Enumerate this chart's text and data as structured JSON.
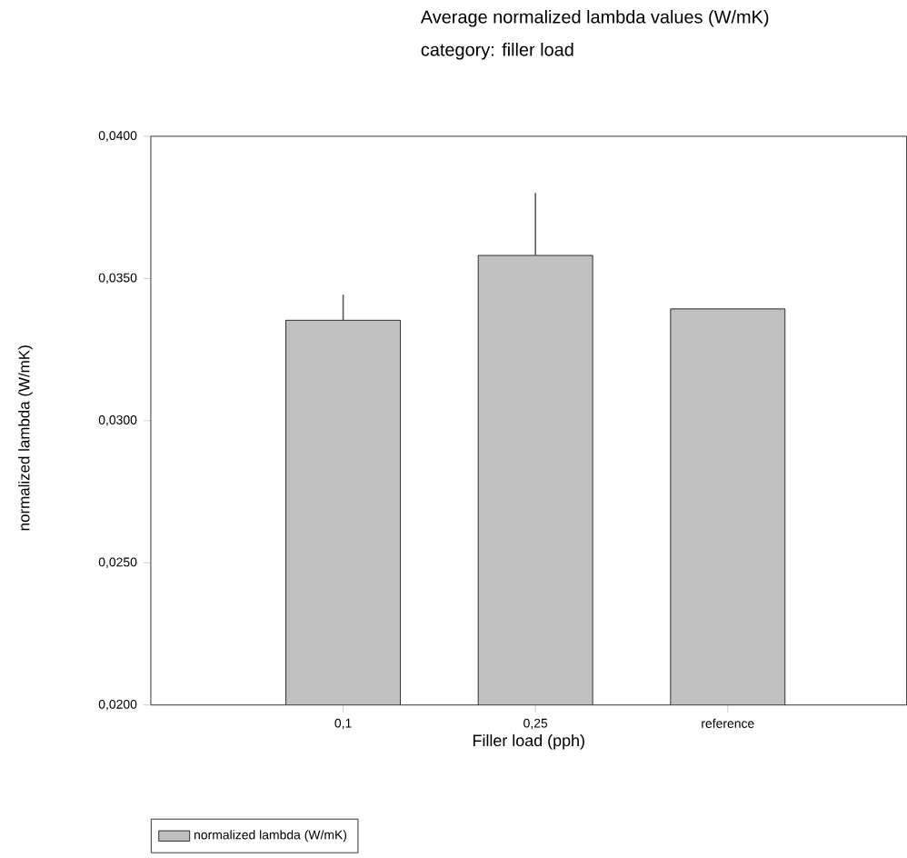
{
  "chart_data": {
    "type": "bar",
    "title": "Average normalized lambda values (W/mK)",
    "subtitle": "category: filler load",
    "xlabel": "Filler load (pph)",
    "ylabel": "normalized lambda (W/mK)",
    "categories": [
      "0,1",
      "0,25",
      "reference"
    ],
    "series": [
      {
        "name": "normalized lambda  (W/mK)",
        "color": "#c0c0c0",
        "values": [
          0.03353,
          0.03581,
          0.03393
        ],
        "errors": [
          0.0009,
          0.0022,
          null
        ]
      }
    ],
    "ylim": [
      0.02,
      0.04
    ],
    "yticks": [
      {
        "value": 0.02,
        "label": "0,0200"
      },
      {
        "value": 0.025,
        "label": "0,0250"
      },
      {
        "value": 0.03,
        "label": "0,0300"
      },
      {
        "value": 0.035,
        "label": "0,0350"
      },
      {
        "value": 0.04,
        "label": "0,0400"
      }
    ],
    "grid": false,
    "legend": "bottom left"
  }
}
